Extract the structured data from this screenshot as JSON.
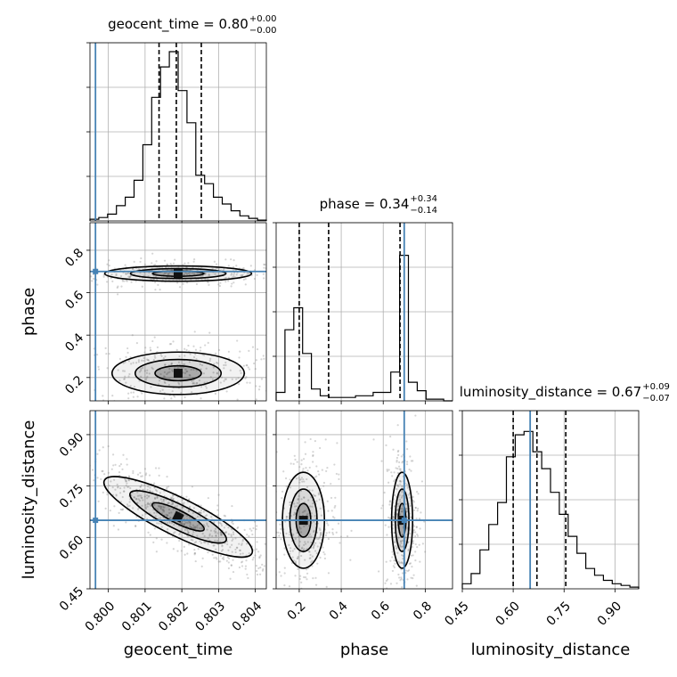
{
  "chart_data": {
    "type": "corner",
    "parameters": [
      {
        "name": "geocent_time",
        "axis_label": "geocent_time",
        "range": [
          0.7995,
          0.8043
        ],
        "ticks": [
          0.8,
          0.801,
          0.802,
          0.803,
          0.804
        ],
        "tick_labels": [
          "0.800",
          "0.801",
          "0.802",
          "0.803",
          "0.804"
        ],
        "title": "geocent_time = 0.80",
        "title_sup": "+0.00",
        "title_sub": "−0.00",
        "median": 0.80185,
        "quantiles": [
          0.80138,
          0.80253
        ],
        "truth": 0.79965
      },
      {
        "name": "phase",
        "axis_label": "phase",
        "range": [
          0.09,
          0.93
        ],
        "ticks": [
          0.2,
          0.4,
          0.6,
          0.8
        ],
        "tick_labels": [
          "0.2",
          "0.4",
          "0.6",
          "0.8"
        ],
        "title": "phase = 0.34",
        "title_sup": "+0.34",
        "title_sub": "−0.14",
        "median": 0.34,
        "quantiles": [
          0.2,
          0.68
        ],
        "truth": 0.7
      },
      {
        "name": "luminosity_distance",
        "axis_label": "luminosity_distance",
        "range": [
          0.45,
          0.97
        ],
        "ticks": [
          0.45,
          0.6,
          0.75,
          0.9
        ],
        "tick_labels": [
          "0.45",
          "0.60",
          "0.75",
          "0.90"
        ],
        "title": "luminosity_distance = 0.67",
        "title_sup": "+0.09",
        "title_sub": "−0.07",
        "median": 0.67,
        "quantiles": [
          0.6,
          0.755
        ],
        "truth": 0.65
      }
    ],
    "histograms": [
      {
        "param": "geocent_time",
        "bins": 20,
        "counts": [
          0.01,
          0.02,
          0.04,
          0.09,
          0.14,
          0.24,
          0.45,
          0.73,
          0.91,
          1.0,
          0.77,
          0.58,
          0.27,
          0.22,
          0.14,
          0.1,
          0.06,
          0.03,
          0.015,
          0.005
        ]
      },
      {
        "param": "phase",
        "bins": 20,
        "counts": [
          0.05,
          0.42,
          0.55,
          0.28,
          0.07,
          0.03,
          0.02,
          0.02,
          0.02,
          0.03,
          0.03,
          0.05,
          0.05,
          0.17,
          0.86,
          0.11,
          0.06,
          0.01,
          0.01,
          0.0
        ]
      },
      {
        "param": "luminosity_distance",
        "bins": 20,
        "counts": [
          0.03,
          0.09,
          0.23,
          0.38,
          0.51,
          0.78,
          0.91,
          0.93,
          0.81,
          0.71,
          0.57,
          0.44,
          0.31,
          0.21,
          0.12,
          0.08,
          0.05,
          0.03,
          0.02,
          0.01
        ]
      }
    ],
    "density_clusters": {
      "phase_vs_geocent_time": [
        {
          "center": [
            0.8019,
            0.69
          ],
          "spread": [
            0.001,
            0.018
          ],
          "weight": 0.55
        },
        {
          "center": [
            0.8019,
            0.22
          ],
          "spread": [
            0.0009,
            0.05
          ],
          "weight": 0.45
        }
      ],
      "luminosity_distance_vs_geocent_time": [
        {
          "center": [
            0.8019,
            0.66
          ],
          "spread": [
            0.0008,
            0.05
          ],
          "weight": 1.0,
          "correlation": -0.85
        }
      ],
      "luminosity_distance_vs_phase": [
        {
          "center": [
            0.22,
            0.65
          ],
          "spread": [
            0.05,
            0.07
          ],
          "weight": 0.5
        },
        {
          "center": [
            0.69,
            0.65
          ],
          "spread": [
            0.025,
            0.07
          ],
          "weight": 0.5
        }
      ]
    },
    "truth_color": "#4682b4",
    "hist_color": "#000000",
    "grid": true
  }
}
